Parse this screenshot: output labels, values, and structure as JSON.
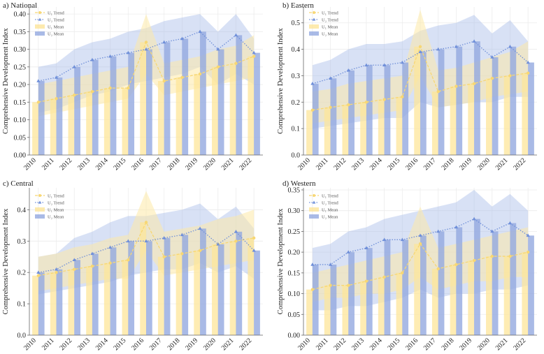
{
  "colors": {
    "u1": "#fde59a",
    "u1_band": "#fde9a8",
    "u1_line": "#f7d774",
    "u2": "#93a9e0",
    "u2_band": "#a9bce9",
    "u2_line": "#6f8fd9"
  },
  "legend": {
    "u1_trend": "U₁ Trend",
    "u2_trend": "U₂ Trend",
    "u1_mean": "U₁ Mean",
    "u2_mean": "U₂ Mean"
  },
  "chart_data": [
    {
      "type": "bar",
      "title": "a) National",
      "ylabel": "Comprehensive Development Index",
      "xlabel": "",
      "categories": [
        "2010",
        "2011",
        "2012",
        "2013",
        "2014",
        "2015",
        "2016",
        "2017",
        "2018",
        "2019",
        "2020",
        "2021",
        "2022"
      ],
      "ylim": [
        0,
        0.42
      ],
      "yticks": [
        "0.00",
        "0.05",
        "0.10",
        "0.15",
        "0.20",
        "0.25",
        "0.30",
        "0.35",
        "0.40"
      ],
      "ytick_values": [
        0,
        0.05,
        0.1,
        0.15,
        0.2,
        0.25,
        0.3,
        0.35,
        0.4
      ],
      "series": [
        {
          "name": "U₁ Mean",
          "values": [
            0.15,
            0.16,
            0.17,
            0.18,
            0.19,
            0.19,
            0.32,
            0.21,
            0.22,
            0.23,
            0.25,
            0.26,
            0.28
          ],
          "band_low": [
            0.11,
            0.12,
            0.13,
            0.14,
            0.15,
            0.16,
            0.23,
            0.17,
            0.18,
            0.19,
            0.2,
            0.21,
            0.22
          ],
          "band_high": [
            0.2,
            0.21,
            0.22,
            0.23,
            0.24,
            0.25,
            0.4,
            0.26,
            0.27,
            0.28,
            0.3,
            0.31,
            0.34
          ]
        },
        {
          "name": "U₂ Mean",
          "values": [
            0.21,
            0.22,
            0.25,
            0.27,
            0.28,
            0.29,
            0.3,
            0.32,
            0.33,
            0.35,
            0.3,
            0.34,
            0.29
          ],
          "band_low": [
            0.12,
            0.13,
            0.15,
            0.17,
            0.18,
            0.2,
            0.21,
            0.22,
            0.23,
            0.25,
            0.2,
            0.23,
            0.2
          ],
          "band_high": [
            0.25,
            0.26,
            0.3,
            0.32,
            0.33,
            0.35,
            0.36,
            0.38,
            0.39,
            0.4,
            0.35,
            0.4,
            0.33
          ]
        }
      ],
      "trend": {
        "u1": [
          0.15,
          0.16,
          0.17,
          0.18,
          0.19,
          0.19,
          0.32,
          0.21,
          0.22,
          0.23,
          0.25,
          0.26,
          0.28
        ],
        "u2": [
          0.21,
          0.22,
          0.25,
          0.27,
          0.28,
          0.29,
          0.3,
          0.32,
          0.33,
          0.35,
          0.3,
          0.34,
          0.29
        ]
      }
    },
    {
      "type": "bar",
      "title": "b) Eastern",
      "ylabel": "Comprehensive Development Index",
      "xlabel": "",
      "categories": [
        "2010",
        "2011",
        "2012",
        "2013",
        "2014",
        "2015",
        "2016",
        "2017",
        "2018",
        "2019",
        "2020",
        "2021",
        "2022"
      ],
      "ylim": [
        0,
        0.56
      ],
      "yticks": [
        "0.0",
        "0.1",
        "0.2",
        "0.3",
        "0.4",
        "0.5"
      ],
      "ytick_values": [
        0,
        0.1,
        0.2,
        0.3,
        0.4,
        0.5
      ],
      "series": [
        {
          "name": "U₁ Mean",
          "values": [
            0.17,
            0.18,
            0.19,
            0.2,
            0.21,
            0.22,
            0.41,
            0.24,
            0.26,
            0.27,
            0.29,
            0.3,
            0.31
          ],
          "band_low": [
            0.12,
            0.13,
            0.14,
            0.15,
            0.16,
            0.17,
            0.3,
            0.18,
            0.19,
            0.2,
            0.22,
            0.23,
            0.24
          ],
          "band_high": [
            0.24,
            0.25,
            0.27,
            0.28,
            0.29,
            0.3,
            0.55,
            0.32,
            0.33,
            0.35,
            0.37,
            0.39,
            0.43
          ]
        },
        {
          "name": "U₂ Mean",
          "values": [
            0.27,
            0.29,
            0.32,
            0.34,
            0.34,
            0.35,
            0.39,
            0.4,
            0.41,
            0.43,
            0.37,
            0.41,
            0.35
          ],
          "band_low": [
            0.1,
            0.11,
            0.12,
            0.13,
            0.14,
            0.14,
            0.2,
            0.18,
            0.19,
            0.2,
            0.2,
            0.22,
            0.22
          ],
          "band_high": [
            0.34,
            0.36,
            0.4,
            0.42,
            0.42,
            0.43,
            0.47,
            0.49,
            0.5,
            0.53,
            0.46,
            0.51,
            0.43
          ]
        }
      ],
      "trend": {
        "u1": [
          0.17,
          0.18,
          0.19,
          0.2,
          0.21,
          0.22,
          0.41,
          0.24,
          0.26,
          0.27,
          0.29,
          0.3,
          0.31
        ],
        "u2": [
          0.27,
          0.29,
          0.32,
          0.34,
          0.34,
          0.35,
          0.39,
          0.4,
          0.41,
          0.43,
          0.37,
          0.41,
          0.35
        ]
      }
    },
    {
      "type": "bar",
      "title": "c) Central",
      "ylabel": "Comprehensive Development Index",
      "xlabel": "",
      "categories": [
        "2010",
        "2011",
        "2012",
        "2013",
        "2014",
        "2015",
        "2016",
        "2017",
        "2018",
        "2019",
        "2020",
        "2021",
        "2022"
      ],
      "ylim": [
        0,
        0.47
      ],
      "yticks": [
        "0.0",
        "0.1",
        "0.2",
        "0.3",
        "0.4"
      ],
      "ytick_values": [
        0,
        0.1,
        0.2,
        0.3,
        0.4
      ],
      "series": [
        {
          "name": "U₁ Mean",
          "values": [
            0.19,
            0.2,
            0.21,
            0.22,
            0.23,
            0.24,
            0.36,
            0.25,
            0.26,
            0.27,
            0.29,
            0.3,
            0.31
          ],
          "band_low": [
            0.14,
            0.15,
            0.16,
            0.17,
            0.18,
            0.18,
            0.27,
            0.19,
            0.2,
            0.21,
            0.22,
            0.23,
            0.24
          ],
          "band_high": [
            0.25,
            0.26,
            0.28,
            0.29,
            0.31,
            0.32,
            0.46,
            0.33,
            0.34,
            0.35,
            0.37,
            0.38,
            0.4
          ]
        },
        {
          "name": "U₂ Mean",
          "values": [
            0.2,
            0.21,
            0.24,
            0.26,
            0.28,
            0.3,
            0.3,
            0.31,
            0.32,
            0.34,
            0.29,
            0.33,
            0.27
          ],
          "band_low": [
            0.13,
            0.14,
            0.15,
            0.16,
            0.17,
            0.19,
            0.2,
            0.21,
            0.21,
            0.23,
            0.2,
            0.22,
            0.18
          ],
          "band_high": [
            0.25,
            0.26,
            0.31,
            0.33,
            0.36,
            0.38,
            0.38,
            0.39,
            0.4,
            0.42,
            0.37,
            0.41,
            0.34
          ]
        }
      ],
      "trend": {
        "u1": [
          0.19,
          0.2,
          0.21,
          0.22,
          0.23,
          0.24,
          0.36,
          0.25,
          0.26,
          0.27,
          0.29,
          0.3,
          0.31
        ],
        "u2": [
          0.2,
          0.21,
          0.24,
          0.26,
          0.28,
          0.3,
          0.3,
          0.31,
          0.32,
          0.34,
          0.29,
          0.33,
          0.27
        ]
      }
    },
    {
      "type": "bar",
      "title": "d) Western",
      "ylabel": "Comprehensive Development Index",
      "xlabel": "",
      "categories": [
        "2010",
        "2011",
        "2012",
        "2013",
        "2014",
        "2015",
        "2016",
        "2017",
        "2018",
        "2019",
        "2020",
        "2021",
        "2022"
      ],
      "ylim": [
        0,
        0.355
      ],
      "yticks": [
        "0.00",
        "0.05",
        "0.10",
        "0.15",
        "0.20",
        "0.25",
        "0.30",
        "0.35"
      ],
      "ytick_values": [
        0,
        0.05,
        0.1,
        0.15,
        0.2,
        0.25,
        0.3,
        0.35
      ],
      "series": [
        {
          "name": "U₁ Mean",
          "values": [
            0.11,
            0.12,
            0.12,
            0.13,
            0.14,
            0.15,
            0.22,
            0.16,
            0.17,
            0.18,
            0.19,
            0.19,
            0.2
          ],
          "band_low": [
            0.08,
            0.09,
            0.09,
            0.1,
            0.1,
            0.11,
            0.14,
            0.11,
            0.12,
            0.13,
            0.13,
            0.14,
            0.14
          ],
          "band_high": [
            0.15,
            0.16,
            0.17,
            0.18,
            0.19,
            0.2,
            0.31,
            0.21,
            0.22,
            0.23,
            0.24,
            0.25,
            0.26
          ]
        },
        {
          "name": "U₂ Mean",
          "values": [
            0.17,
            0.17,
            0.2,
            0.21,
            0.23,
            0.23,
            0.24,
            0.25,
            0.26,
            0.28,
            0.25,
            0.27,
            0.24
          ],
          "band_low": [
            0.06,
            0.06,
            0.07,
            0.07,
            0.08,
            0.09,
            0.11,
            0.09,
            0.1,
            0.1,
            0.11,
            0.11,
            0.12
          ],
          "band_high": [
            0.21,
            0.22,
            0.25,
            0.26,
            0.28,
            0.29,
            0.3,
            0.31,
            0.32,
            0.35,
            0.31,
            0.34,
            0.3
          ]
        }
      ],
      "trend": {
        "u1": [
          0.11,
          0.12,
          0.12,
          0.13,
          0.14,
          0.15,
          0.22,
          0.16,
          0.17,
          0.18,
          0.19,
          0.19,
          0.2
        ],
        "u2": [
          0.17,
          0.17,
          0.2,
          0.21,
          0.23,
          0.23,
          0.24,
          0.25,
          0.26,
          0.28,
          0.25,
          0.27,
          0.24
        ]
      }
    }
  ]
}
